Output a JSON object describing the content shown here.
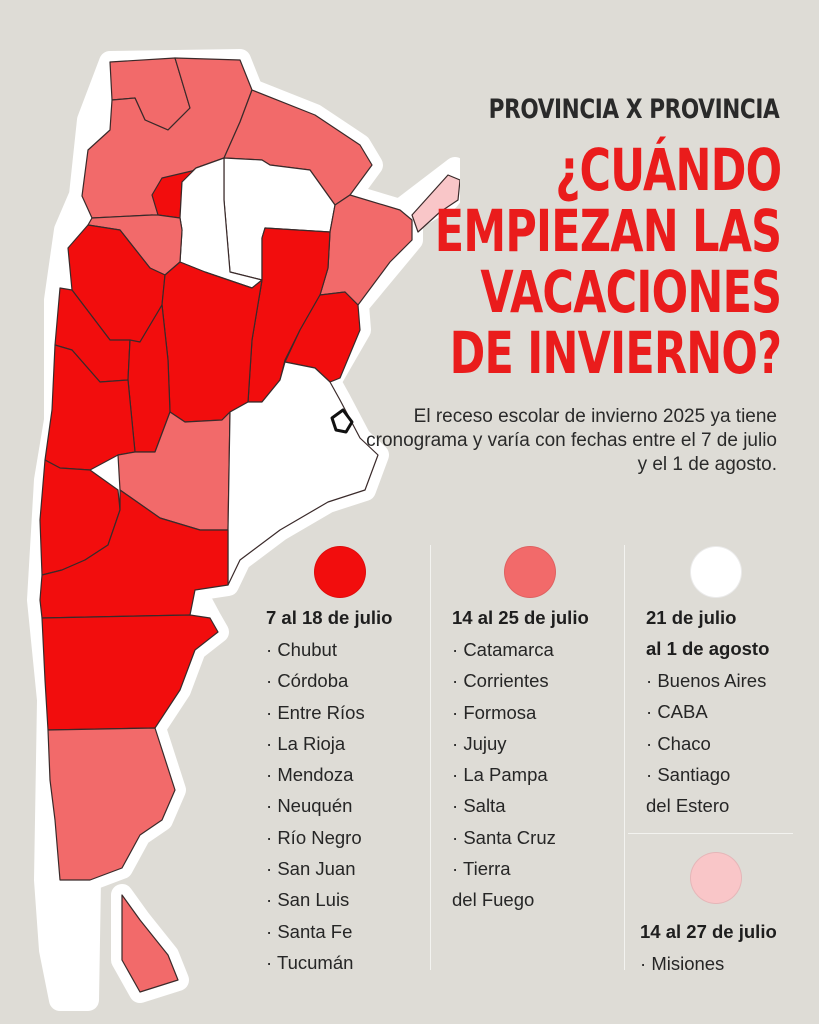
{
  "header": {
    "kicker": "PROVINCIA X PROVINCIA",
    "headline_lines": [
      "¿CUÁNDO",
      "EMPIEZAN LAS",
      "VACACIONES",
      "DE INVIERNO?"
    ],
    "subtitle": "El receso escolar de invierno 2025 ya tiene cronograma y varía con fechas entre el 7 de julio y el 1 de agosto."
  },
  "colors": {
    "background": "#dedcd6",
    "group_1": "#f20d0d",
    "group_2": "#f26a6a",
    "group_3": "#ffffff",
    "group_4": "#f9c6c8",
    "title_red": "#ea1c1c"
  },
  "groups": [
    {
      "range_lines": [
        "7 al 18 de julio"
      ],
      "color": "#f20d0d",
      "items": [
        "Chubut",
        "Córdoba",
        "Entre Ríos",
        "La Rioja",
        "Mendoza",
        "Neuquén",
        "Río Negro",
        "San Juan",
        "San Luis",
        "Santa Fe",
        "Tucumán"
      ]
    },
    {
      "range_lines": [
        "14 al 25 de julio"
      ],
      "color": "#f26a6a",
      "items": [
        "Catamarca",
        "Corrientes",
        "Formosa",
        "Jujuy",
        "La Pampa",
        "Salta",
        "Santa Cruz",
        "Tierra",
        "del Fuego"
      ]
    },
    {
      "range_lines": [
        "21 de julio",
        "al 1 de agosto"
      ],
      "color": "#ffffff",
      "items": [
        "Buenos Aires",
        "CABA",
        "Chaco",
        "Santiago",
        "del Estero"
      ]
    },
    {
      "range_lines": [
        "14 al 27 de julio"
      ],
      "color": "#f9c6c8",
      "items": [
        "Misiones"
      ]
    }
  ]
}
